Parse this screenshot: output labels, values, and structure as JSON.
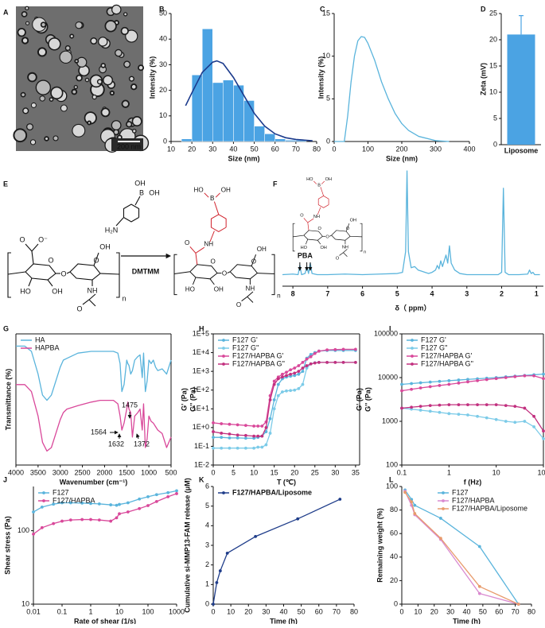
{
  "image": {
    "panel": "A",
    "scale_bar": "200 nm"
  },
  "scheme": {
    "panel": "E",
    "reagent": "DMTMM",
    "reactant_labels": [
      "O",
      "O⁻",
      "O",
      "HO",
      "OH",
      "O",
      "O",
      "OH",
      "NH",
      "O",
      "n"
    ],
    "reagent_labels": [
      "OH",
      "B",
      "OH",
      "H₂N"
    ],
    "product_labels": [
      "O",
      "NH",
      "O",
      "HO",
      "OH",
      "O",
      "O",
      "OH",
      "NH",
      "O",
      "n",
      "HO",
      "B",
      "OH"
    ]
  },
  "chart_data": [
    {
      "type": "histogram",
      "panel": "B",
      "xlabel": "Size (nm)",
      "ylabel": "Intensity (%)",
      "bins": [
        15,
        20,
        25,
        30,
        35,
        40,
        45,
        50,
        55,
        60,
        65,
        70,
        75
      ],
      "values": [
        1,
        26,
        44,
        23,
        24,
        22,
        16,
        6,
        3,
        1,
        0.5,
        0.5
      ],
      "color": "#4ba3e3",
      "fit": {
        "x": [
          17,
          20,
          25,
          30,
          32,
          35,
          40,
          45,
          50,
          55,
          60,
          65,
          70,
          78
        ],
        "values": [
          14,
          19,
          27,
          31,
          31.5,
          30.5,
          25,
          18,
          11,
          6,
          3,
          1.5,
          0.8,
          0.3
        ],
        "color": "#1b3a8c"
      },
      "xlim": [
        10,
        80
      ],
      "xticks": [
        10,
        20,
        30,
        40,
        50,
        60,
        70,
        80
      ],
      "ylim": [
        0,
        50
      ],
      "yticks": [
        0,
        10,
        20,
        30,
        40,
        50
      ]
    },
    {
      "type": "line",
      "panel": "C",
      "xlabel": "Size (nm)",
      "ylabel": "Intensity (%)",
      "x": [
        0,
        30,
        40,
        50,
        60,
        70,
        80,
        90,
        100,
        120,
        140,
        160,
        180,
        200,
        220,
        250,
        300,
        340
      ],
      "series": [
        {
          "color": "#5ab4dc",
          "values": [
            0,
            0,
            3,
            7,
            10,
            11.8,
            12.3,
            12.2,
            11.5,
            9.5,
            7,
            5,
            3.3,
            2.1,
            1.3,
            0.6,
            0.1,
            0
          ]
        }
      ],
      "xlim": [
        0,
        400
      ],
      "xticks": [
        0,
        100,
        200,
        300,
        400
      ],
      "ylim": [
        0,
        15
      ],
      "yticks": [
        0,
        5,
        10,
        15
      ]
    },
    {
      "type": "bar",
      "panel": "D",
      "ylabel": "Zeta (mV)",
      "categories": [
        "Liposome"
      ],
      "values": [
        21
      ],
      "errors": [
        3.6
      ],
      "color": "#4ba3e3",
      "ylim": [
        0,
        25
      ],
      "yticks": [
        0,
        5,
        10,
        15,
        20,
        25
      ]
    },
    {
      "type": "line",
      "panel": "F",
      "xlabel": "δ（ ppm）",
      "yaxis": false,
      "annotations": [
        "PBA"
      ],
      "structure_labels": [
        "O",
        "NH",
        "O",
        "HO",
        "OH",
        "O",
        "O",
        "OH",
        "NH",
        "O",
        "n",
        "HO",
        "B",
        "OH"
      ],
      "x": [
        8.3,
        8.0,
        7.85,
        7.8,
        7.75,
        7.65,
        7.6,
        7.55,
        7.5,
        7.45,
        7.3,
        7.0,
        6.5,
        6.0,
        5.5,
        5.0,
        4.85,
        4.76,
        4.72,
        4.68,
        4.6,
        4.5,
        4.4,
        4.3,
        4.2,
        4.1,
        4.0,
        3.9,
        3.85,
        3.8,
        3.75,
        3.7,
        3.6,
        3.55,
        3.5,
        3.45,
        3.35,
        3.2,
        3.0,
        2.5,
        2.1,
        2.0,
        1.95,
        1.9,
        1.8,
        1.5,
        1.25,
        1.2,
        1.15,
        1.1,
        1.05,
        0.9
      ],
      "series": [
        {
          "color": "#5ab4dc",
          "values": [
            10,
            10.5,
            10,
            18,
            10,
            11,
            17,
            11,
            20,
            11,
            10,
            10,
            10.5,
            10,
            10.5,
            11,
            12,
            30,
            100,
            30,
            16,
            17,
            14,
            13,
            12,
            11,
            12,
            14,
            18,
            15,
            22,
            17,
            27,
            20,
            35,
            20,
            14,
            11,
            10,
            10,
            10,
            12,
            85,
            12,
            10,
            10,
            10.5,
            14,
            11,
            12,
            10,
            10
          ]
        }
      ],
      "xlim": [
        8.3,
        0.8
      ],
      "xticks": [
        8,
        7,
        6,
        5,
        4,
        3,
        2,
        1
      ],
      "ylim": [
        0,
        100
      ]
    },
    {
      "type": "line",
      "panel": "G",
      "xlabel": "Wavenumber (cm⁻¹)",
      "ylabel": "Transmittance (%)",
      "legend": "upper-left",
      "box": true,
      "annotations": [
        "1475",
        "1564",
        "1632",
        "1372"
      ],
      "x": [
        4000,
        3800,
        3650,
        3500,
        3400,
        3300,
        3200,
        3100,
        3000,
        2930,
        2850,
        2600,
        2300,
        2100,
        2000,
        1800,
        1700,
        1650,
        1610,
        1560,
        1500,
        1475,
        1450,
        1410,
        1372,
        1320,
        1250,
        1200,
        1150,
        1120,
        1080,
        1040,
        1000,
        950,
        900,
        850,
        800,
        700,
        600,
        500
      ],
      "series": [
        {
          "name": "HA",
          "color": "#5ab4dc",
          "values": [
            88,
            88,
            85,
            72,
            60,
            57,
            60,
            68,
            76,
            80,
            81,
            84,
            85,
            85,
            85,
            85,
            84,
            78,
            62,
            66,
            80,
            78,
            77,
            72,
            74,
            80,
            82,
            83,
            70,
            84,
            62,
            68,
            80,
            78,
            80,
            76,
            74,
            75,
            72,
            80
          ]
        },
        {
          "name": "HAPBA",
          "color": "#d9489a",
          "values": [
            66,
            66,
            62,
            48,
            33,
            28,
            30,
            38,
            46,
            50,
            52,
            54,
            56,
            57,
            57,
            57,
            55,
            48,
            40,
            44,
            52,
            56,
            52,
            50,
            36,
            48,
            50,
            52,
            40,
            55,
            30,
            35,
            48,
            45,
            44,
            42,
            40,
            38,
            30,
            36
          ]
        }
      ],
      "xlim": [
        4000,
        500
      ],
      "xticks": [
        4000,
        3500,
        3000,
        2500,
        2000,
        1500,
        1000,
        500
      ],
      "ylim": [
        20,
        95
      ]
    },
    {
      "type": "line",
      "panel": "H",
      "xlabel": "T (℃)",
      "ylabel": [
        "G' (Pa)",
        "G'' (Pa)"
      ],
      "legend": "upper-left",
      "box": true,
      "markers": true,
      "yscale": "log",
      "x": [
        0,
        2,
        4,
        6,
        8,
        10,
        11,
        12,
        13,
        14,
        15,
        16,
        17,
        18,
        19,
        20,
        21,
        22,
        23,
        24,
        25,
        26,
        28,
        30,
        32,
        35
      ],
      "series": [
        {
          "name": "F127 G'",
          "color": "#5ab4dc",
          "values": [
            0.3,
            0.3,
            0.28,
            0.28,
            0.27,
            0.27,
            0.3,
            0.35,
            0.6,
            3,
            30,
            200,
            400,
            500,
            550,
            600,
            700,
            1000,
            5000,
            8000,
            10000,
            12000,
            13000,
            13000,
            13000,
            13000
          ]
        },
        {
          "name": "F127 G''",
          "color": "#7ccbe8",
          "values": [
            0.08,
            0.08,
            0.08,
            0.08,
            0.08,
            0.08,
            0.09,
            0.09,
            0.12,
            0.5,
            10,
            50,
            80,
            90,
            95,
            100,
            120,
            200,
            1500,
            2500,
            2900,
            3000,
            3000,
            3000,
            3000,
            3000
          ]
        },
        {
          "name": "F127/HAPBA G'",
          "color": "#d9489a",
          "values": [
            1.8,
            1.6,
            1.5,
            1.4,
            1.3,
            1.2,
            1.2,
            1.2,
            2,
            50,
            300,
            500,
            700,
            900,
            1200,
            1500,
            2000,
            3000,
            4500,
            6000,
            9000,
            12000,
            14000,
            14500,
            15000,
            15000
          ]
        },
        {
          "name": "F127/HAPBA G''",
          "color": "#c2307f",
          "values": [
            0.6,
            0.5,
            0.45,
            0.4,
            0.38,
            0.35,
            0.35,
            0.35,
            1,
            30,
            200,
            400,
            500,
            600,
            700,
            800,
            1000,
            1500,
            2000,
            2500,
            2800,
            3000,
            3000,
            3000,
            3000,
            3000
          ]
        }
      ],
      "xlim": [
        0,
        36
      ],
      "xticks": [
        0,
        5,
        10,
        15,
        20,
        25,
        30,
        35
      ],
      "ylim": [
        0.01,
        100000
      ],
      "yticks": [
        {
          "value": 0.01,
          "label": "1E-2"
        },
        {
          "value": 0.1,
          "label": "1E-1"
        },
        {
          "value": 1,
          "label": "1E+0"
        },
        {
          "value": 10,
          "label": "1E+1"
        },
        {
          "value": 100,
          "label": "1E+2"
        },
        {
          "value": 1000,
          "label": "1E+3"
        },
        {
          "value": 10000,
          "label": "1E+4"
        },
        {
          "value": 100000,
          "label": "1E+5"
        }
      ]
    },
    {
      "type": "line",
      "panel": "I",
      "xlabel": "f (Hz)",
      "ylabel": [
        "G' (Pa)",
        "G'' (Pa)"
      ],
      "legend": "upper-left",
      "box": true,
      "markers": true,
      "xscale": "log",
      "yscale": "log",
      "x": [
        0.1,
        0.16,
        0.25,
        0.4,
        0.63,
        1,
        1.6,
        2.5,
        4,
        6.3,
        10,
        16,
        25,
        40,
        63,
        100
      ],
      "series": [
        {
          "name": "F127 G'",
          "color": "#5ab4dc",
          "values": [
            7000,
            7300,
            7600,
            7900,
            8200,
            8500,
            8800,
            9100,
            9400,
            9700,
            10000,
            10400,
            10800,
            11200,
            11600,
            12000
          ]
        },
        {
          "name": "F127 G''",
          "color": "#7ccbe8",
          "values": [
            2000,
            1900,
            1800,
            1700,
            1600,
            1500,
            1450,
            1400,
            1300,
            1200,
            1100,
            1000,
            950,
            1000,
            750,
            400
          ]
        },
        {
          "name": "F127/HAPBA G'",
          "color": "#d9489a",
          "values": [
            5000,
            5400,
            5800,
            6200,
            6600,
            7000,
            7500,
            8000,
            8500,
            9000,
            9500,
            10000,
            10500,
            11000,
            11000,
            9500
          ]
        },
        {
          "name": "F127/HAPBA G''",
          "color": "#c2307f",
          "values": [
            2000,
            2100,
            2200,
            2300,
            2350,
            2400,
            2400,
            2400,
            2400,
            2400,
            2400,
            2300,
            2200,
            2000,
            1300,
            600
          ]
        }
      ],
      "xlim": [
        0.1,
        100
      ],
      "xticks": [
        0.1,
        1,
        10,
        100
      ],
      "ylim": [
        100,
        100000
      ],
      "yticks": [
        100,
        1000,
        10000,
        100000
      ]
    },
    {
      "type": "line",
      "panel": "J",
      "xlabel": "Rate of shear (1/s)",
      "ylabel": "Shear stress (Pa)",
      "legend": "upper-left",
      "markers": true,
      "xscale": "log",
      "yscale": "log",
      "x": [
        0.01,
        0.02,
        0.05,
        0.1,
        0.2,
        0.5,
        1,
        2,
        5,
        8,
        10,
        20,
        50,
        100,
        200,
        500,
        1000
      ],
      "series": [
        {
          "name": "F127",
          "color": "#5ab4dc",
          "values": [
            180,
            210,
            230,
            240,
            240,
            238,
            235,
            232,
            225,
            222,
            228,
            240,
            270,
            290,
            310,
            330,
            350
          ]
        },
        {
          "name": "F127/HAPBA",
          "color": "#d9489a",
          "values": [
            90,
            110,
            125,
            135,
            140,
            142,
            142,
            140,
            135,
            150,
            170,
            180,
            200,
            220,
            250,
            290,
            320
          ]
        }
      ],
      "xlim": [
        0.01,
        1000
      ],
      "xticks": [
        0.01,
        0.1,
        1,
        10,
        100,
        1000
      ],
      "ylim": [
        10,
        400
      ],
      "yticks": [
        10,
        100
      ]
    },
    {
      "type": "line",
      "panel": "K",
      "xlabel": "Time (h)",
      "ylabel": "Cumulative si-MMP13-FAM release (μM)",
      "legend": "upper-left",
      "markers": true,
      "x": [
        0,
        2,
        4,
        8,
        24,
        48,
        72
      ],
      "series": [
        {
          "name": "F127/HAPBA/Liposome",
          "color": "#1f3d8a",
          "values": [
            0,
            1.1,
            1.7,
            2.6,
            3.45,
            4.35,
            5.35
          ]
        }
      ],
      "xlim": [
        0,
        80
      ],
      "xticks": [
        0,
        10,
        20,
        30,
        40,
        50,
        60,
        70,
        80
      ],
      "ylim": [
        0,
        6
      ],
      "yticks": [
        0,
        1,
        2,
        3,
        4,
        5,
        6
      ]
    },
    {
      "type": "line",
      "panel": "L",
      "xlabel": "Time (h)",
      "ylabel": "Remaining weight (%)",
      "legend": "upper-right",
      "markers": true,
      "x": [
        2,
        6,
        8,
        24,
        48,
        72
      ],
      "series": [
        {
          "name": "F127",
          "color": "#5ab4dc",
          "values": [
            97,
            89,
            84,
            73,
            49,
            0
          ]
        },
        {
          "name": "F127/HAPBA",
          "color": "#d98ad0",
          "values": [
            96,
            84,
            76,
            55,
            9,
            0
          ]
        },
        {
          "name": "F127/HAPBA/Liposome",
          "color": "#e89b6c",
          "values": [
            95,
            87,
            77,
            56,
            15,
            0
          ]
        }
      ],
      "xlim": [
        0,
        80
      ],
      "xticks": [
        0,
        10,
        20,
        30,
        40,
        50,
        60,
        70,
        80
      ],
      "ylim": [
        0,
        100
      ],
      "yticks": [
        0,
        20,
        40,
        60,
        80,
        100
      ]
    }
  ]
}
